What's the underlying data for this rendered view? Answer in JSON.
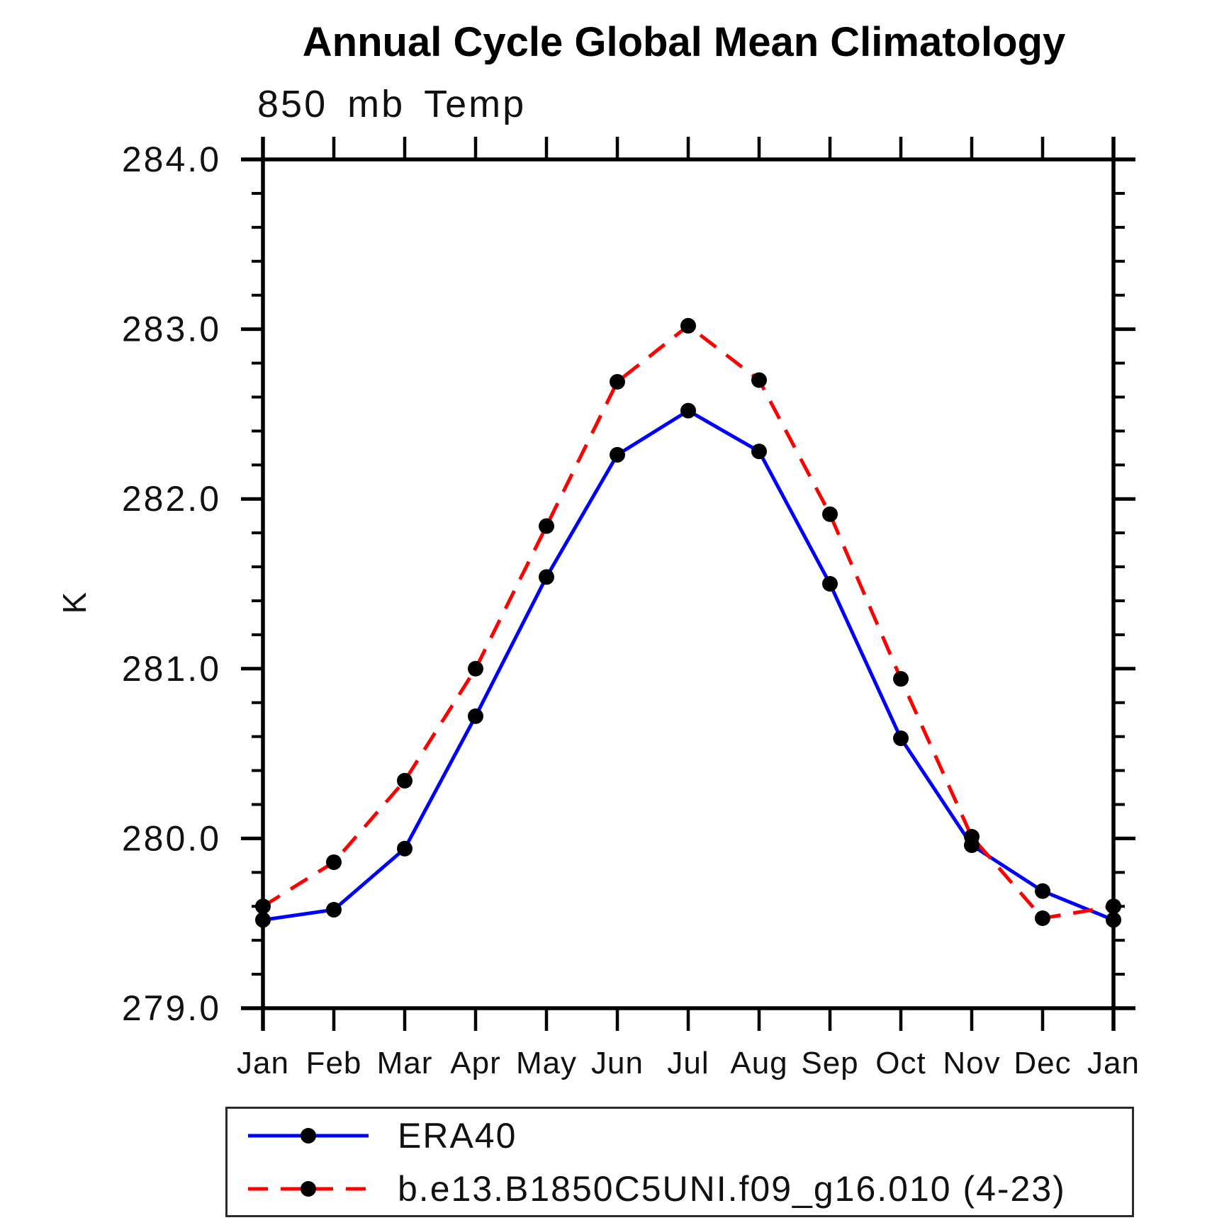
{
  "title": "Annual Cycle Global Mean Climatology",
  "subtitle": "850 mb Temp",
  "ylabel": "K",
  "colors": {
    "era40_line": "#0000ff",
    "model_line": "#ff0000",
    "marker": "#000000",
    "axis": "#000000"
  },
  "chart_data": {
    "type": "line",
    "title": "Annual Cycle Global Mean Climatology",
    "subtitle": "850 mb Temp",
    "xlabel": "",
    "ylabel": "K",
    "categories": [
      "Jan",
      "Feb",
      "Mar",
      "Apr",
      "May",
      "Jun",
      "Jul",
      "Aug",
      "Sep",
      "Oct",
      "Nov",
      "Dec",
      "Jan"
    ],
    "ylim": [
      279.0,
      284.0
    ],
    "ytick_major": [
      279.0,
      280.0,
      281.0,
      282.0,
      283.0,
      284.0
    ],
    "ytick_labels": [
      "279.0",
      "280.0",
      "281.0",
      "282.0",
      "283.0",
      "284.0"
    ],
    "ytick_minor_step": 0.2,
    "grid": false,
    "legend_position": "bottom-left-box",
    "series": [
      {
        "name": "ERA40",
        "color": "#0000ff",
        "style": "solid",
        "marker": "circle",
        "marker_color": "#000000",
        "values": [
          279.52,
          279.58,
          279.94,
          280.72,
          281.54,
          282.26,
          282.52,
          282.28,
          281.5,
          280.59,
          279.96,
          279.69,
          279.52
        ]
      },
      {
        "name": "b.e13.B1850C5UNI.f09_g16.010 (4-23)",
        "color": "#ff0000",
        "style": "dashed",
        "marker": "circle",
        "marker_color": "#000000",
        "values": [
          279.6,
          279.86,
          280.34,
          281.0,
          281.84,
          282.69,
          283.02,
          282.7,
          281.91,
          280.94,
          280.01,
          279.53,
          279.6
        ]
      }
    ]
  }
}
